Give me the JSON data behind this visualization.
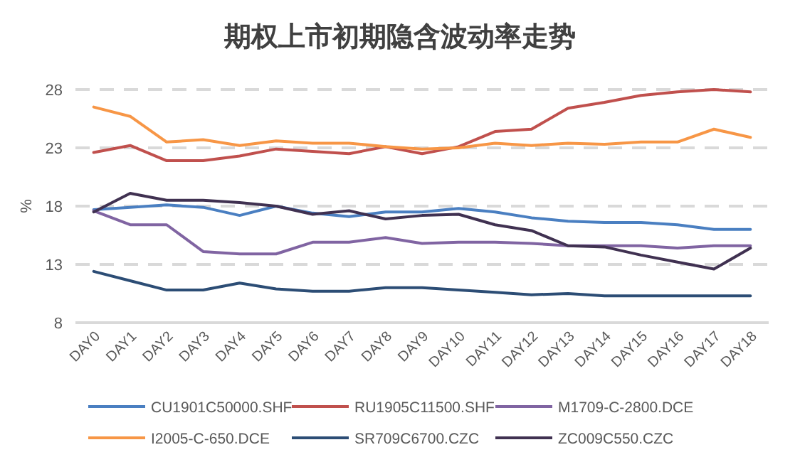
{
  "chart_data": {
    "type": "line",
    "title": "期权上市初期隐含波动率走势",
    "ylabel": "%",
    "categories": [
      "DAY0",
      "DAY1",
      "DAY2",
      "DAY3",
      "DAY4",
      "DAY5",
      "DAY6",
      "DAY7",
      "DAY8",
      "DAY9",
      "DAY10",
      "DAY11",
      "DAY12",
      "DAY13",
      "DAY14",
      "DAY15",
      "DAY16",
      "DAY17",
      "DAY18"
    ],
    "series": [
      {
        "name": "CU1901C50000.SHF",
        "color": "#4a7fc1",
        "values": [
          17.7,
          17.9,
          18.1,
          17.9,
          17.2,
          18.0,
          17.4,
          17.1,
          17.5,
          17.5,
          17.8,
          17.5,
          17.0,
          16.7,
          16.6,
          16.6,
          16.4,
          16.0,
          16.0
        ]
      },
      {
        "name": "RU1905C11500.SHF",
        "color": "#c0504d",
        "values": [
          22.6,
          23.2,
          21.9,
          21.9,
          22.3,
          22.9,
          22.7,
          22.5,
          23.1,
          22.5,
          23.1,
          24.4,
          24.6,
          26.4,
          26.9,
          27.5,
          27.8,
          28.0,
          27.8
        ]
      },
      {
        "name": "M1709-C-2800.DCE",
        "color": "#8064a2",
        "values": [
          17.6,
          16.4,
          16.4,
          14.1,
          13.9,
          13.9,
          14.9,
          14.9,
          15.3,
          14.8,
          14.9,
          14.9,
          14.8,
          14.6,
          14.6,
          14.6,
          14.4,
          14.6,
          14.6
        ]
      },
      {
        "name": "I2005-C-650.DCE",
        "color": "#f79646",
        "values": [
          26.5,
          25.7,
          23.5,
          23.7,
          23.2,
          23.6,
          23.4,
          23.4,
          23.1,
          22.9,
          23.0,
          23.4,
          23.2,
          23.4,
          23.3,
          23.5,
          23.5,
          24.6,
          23.9
        ]
      },
      {
        "name": "SR709C6700.CZC",
        "color": "#2c4d75",
        "values": [
          12.4,
          11.6,
          10.8,
          10.8,
          11.4,
          10.9,
          10.7,
          10.7,
          11.0,
          11.0,
          10.8,
          10.6,
          10.4,
          10.5,
          10.3,
          10.3,
          10.3,
          10.3,
          10.3
        ]
      },
      {
        "name": "ZC009C550.CZC",
        "color": "#403151",
        "values": [
          17.5,
          19.1,
          18.5,
          18.5,
          18.3,
          18.0,
          17.3,
          17.6,
          16.9,
          17.2,
          17.3,
          16.4,
          15.9,
          14.6,
          14.5,
          13.8,
          13.2,
          12.6,
          14.4
        ]
      }
    ],
    "ylim": [
      8,
      28
    ],
    "yticks": [
      8,
      13,
      18,
      23,
      28
    ],
    "grid": "y",
    "legend": "bottom",
    "line_style": "solid"
  }
}
